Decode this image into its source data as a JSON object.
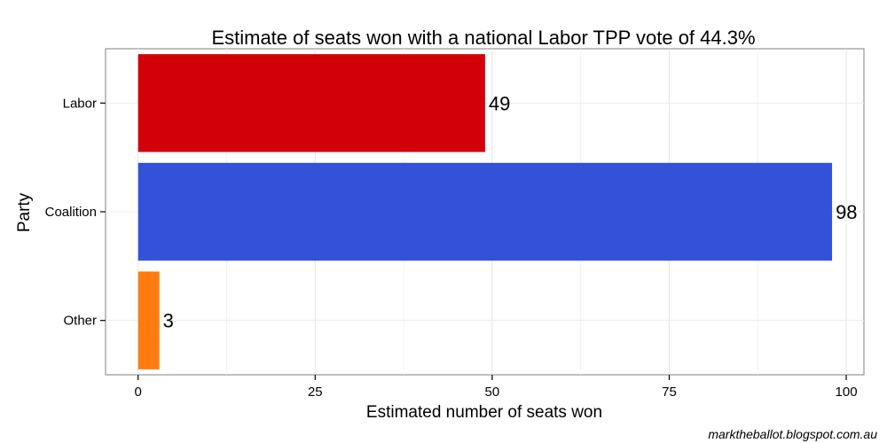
{
  "chart_data": {
    "type": "bar",
    "orientation": "horizontal",
    "title": "Estimate of seats won with a national Labor TPP vote of 44.3%",
    "xlabel": "Estimated number of seats won",
    "ylabel": "Party",
    "categories": [
      "Labor",
      "Coalition",
      "Other"
    ],
    "values": [
      49,
      98,
      3
    ],
    "data_labels": [
      "49",
      "98",
      "3"
    ],
    "colors": [
      "#d20008",
      "#3352d9",
      "#ff7b0f"
    ],
    "xlim": [
      -4.6,
      102.5
    ],
    "x_ticks": [
      0,
      25,
      50,
      75,
      100
    ],
    "x_tick_labels": [
      "0",
      "25",
      "50",
      "75",
      "100"
    ],
    "grid": true,
    "legend": "none"
  },
  "credit": "marktheballot.blogspot.com.au"
}
